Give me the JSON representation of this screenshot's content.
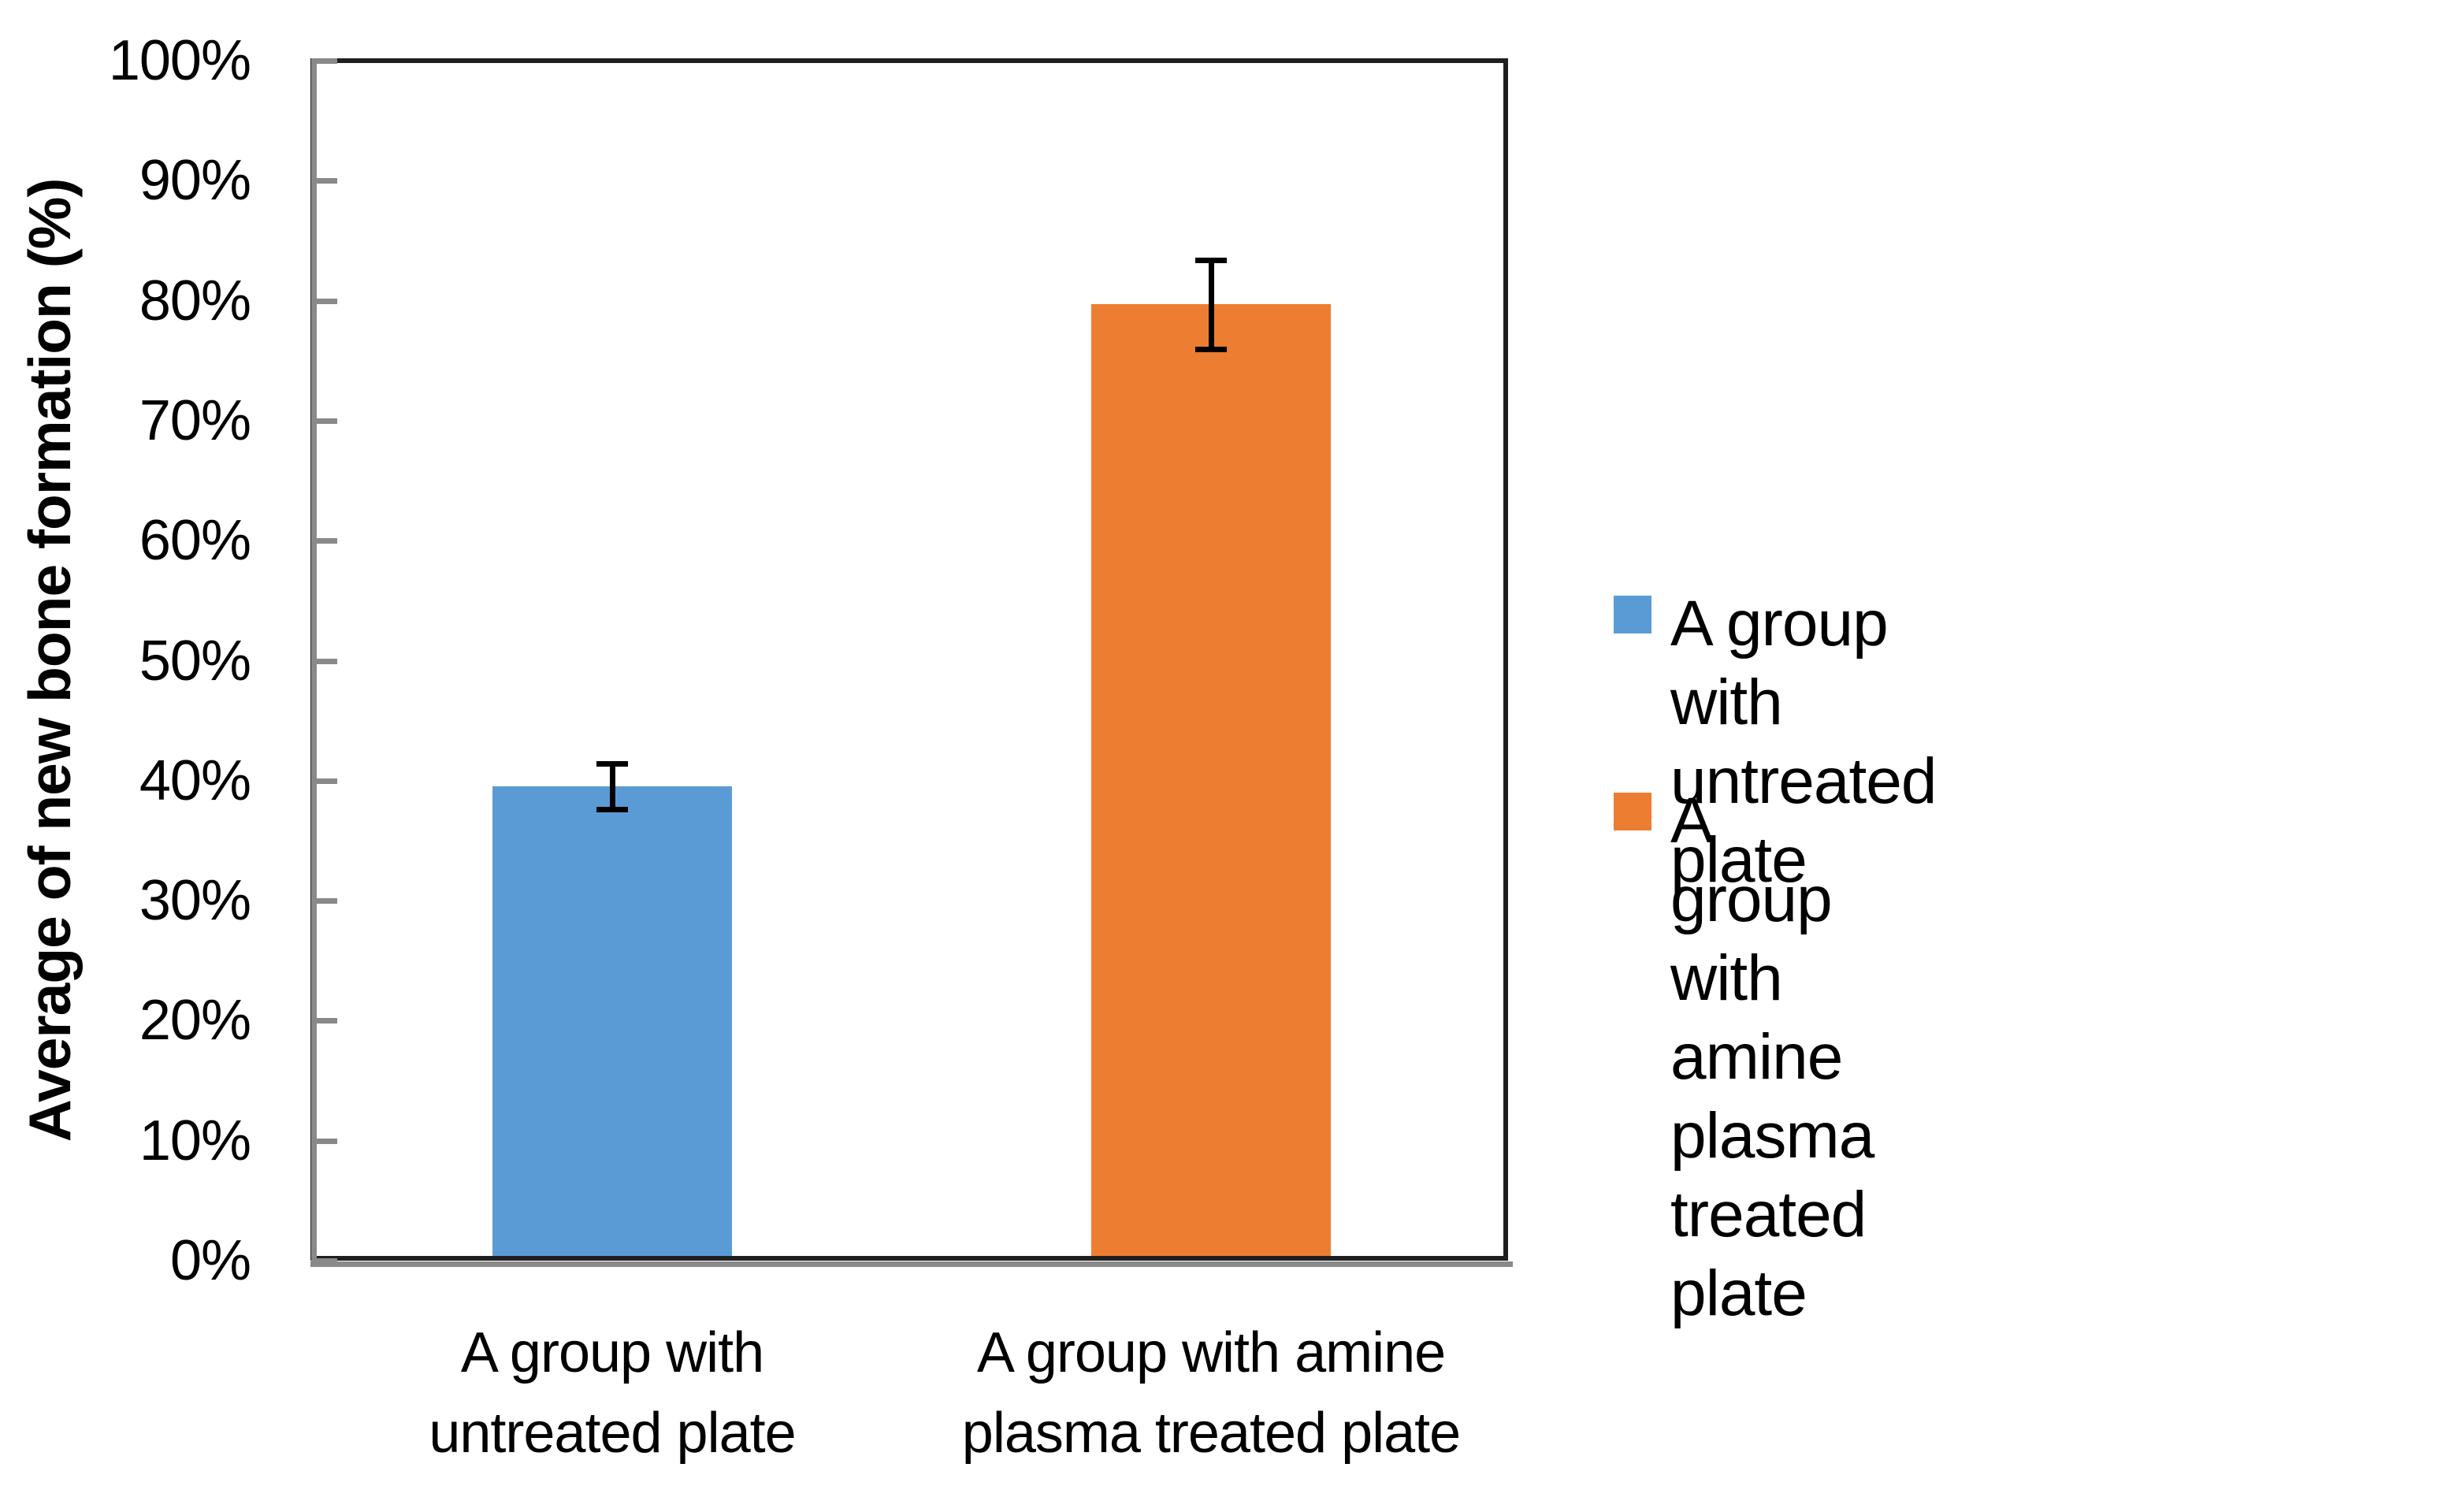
{
  "chart_data": {
    "type": "bar",
    "title": "",
    "ylabel": "Average of new bone formation (%)",
    "xlabel": "",
    "ylim": [
      0,
      100
    ],
    "ytick_step": 10,
    "ytick_labels": [
      "0%",
      "10%",
      "20%",
      "30%",
      "40%",
      "50%",
      "60%",
      "70%",
      "80%",
      "90%",
      "100%"
    ],
    "grid": "off",
    "legend_position": "right",
    "categories": [
      {
        "label_lines": [
          "A group with",
          "untreated plate"
        ]
      },
      {
        "label_lines": [
          "A group with amine",
          "plasma treated plate"
        ]
      }
    ],
    "series": [
      {
        "name": "A group with untreated plate",
        "value_pct": 39.5,
        "error_pct": 1.9,
        "color": "#5B9BD5"
      },
      {
        "name": "A group with amine plasma treated plate",
        "value_pct": 79.7,
        "error_pct": 3.7,
        "color": "#ED7D31"
      }
    ]
  },
  "legend": {
    "items": [
      {
        "label_lines": [
          "A group with untreated",
          "plate"
        ],
        "color": "#5B9BD5"
      },
      {
        "label_lines": [
          "A group with amine plasma",
          "treated plate"
        ],
        "color": "#ED7D31"
      }
    ]
  },
  "colors": {
    "plot_border": "#1f1f1f",
    "axis_gray": "#898989",
    "error_bar": "#000000",
    "text": "#000000",
    "background": "#ffffff"
  }
}
